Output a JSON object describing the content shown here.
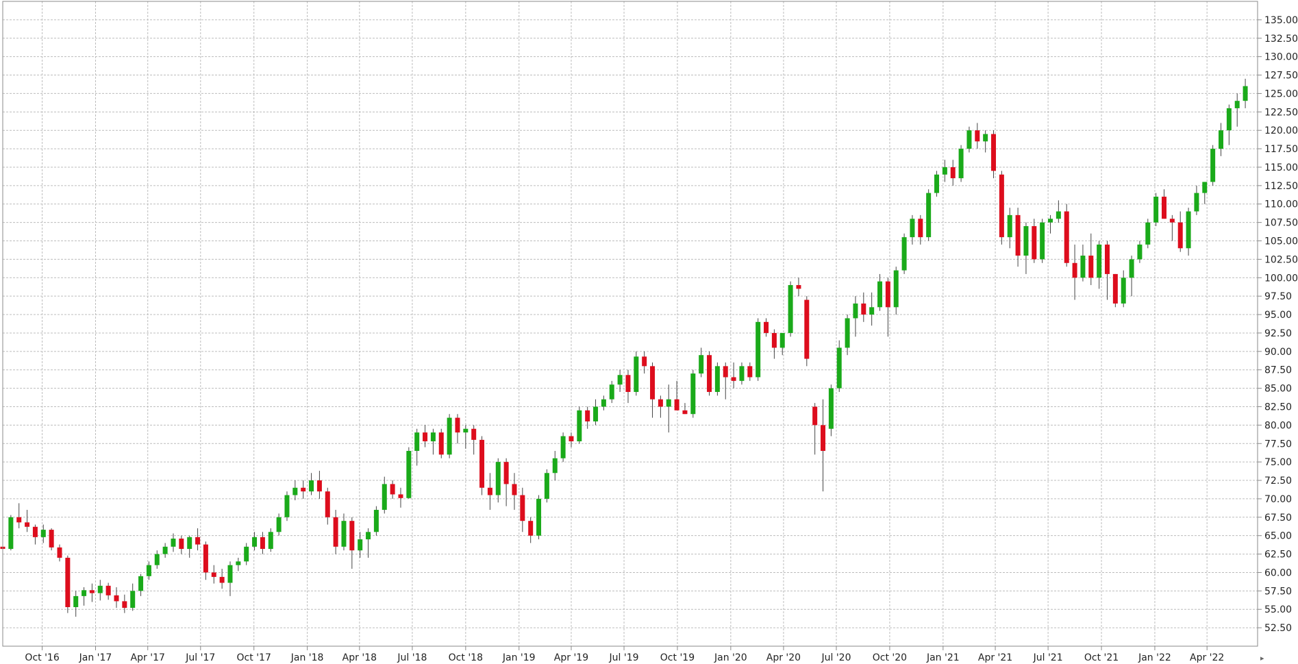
{
  "chart_data": {
    "type": "candlestick",
    "title": "",
    "xlabel": "",
    "ylabel": "",
    "ylim": [
      50,
      137.5
    ],
    "y_axis_position": "right",
    "grid": true,
    "legend": "none",
    "colors": {
      "up": "#1aaa1a",
      "down": "#dd0d1d",
      "grid": "#bcbcbc",
      "axis": "#888888",
      "wick": "#444444"
    },
    "y_ticks": [
      "52.50",
      "55.00",
      "57.50",
      "60.00",
      "62.50",
      "65.00",
      "67.50",
      "70.00",
      "72.50",
      "75.00",
      "77.50",
      "80.00",
      "82.50",
      "85.00",
      "87.50",
      "90.00",
      "92.50",
      "95.00",
      "97.50",
      "100.00",
      "102.50",
      "105.00",
      "107.50",
      "110.00",
      "112.50",
      "115.00",
      "117.50",
      "120.00",
      "122.50",
      "125.00",
      "127.50",
      "130.00",
      "132.50",
      "135.00"
    ],
    "x_ticks": [
      "Oct '16",
      "Jan '17",
      "Apr '17",
      "Jul '17",
      "Oct '17",
      "Jan '18",
      "Apr '18",
      "Jul '18",
      "Oct '18",
      "Jan '19",
      "Apr '19",
      "Jul '19",
      "Oct '19",
      "Jan '20",
      "Apr '20",
      "Jul '20",
      "Oct '20",
      "Jan '21",
      "Apr '21",
      "Jul '21",
      "Oct '21",
      "Jan '22",
      "Apr '22"
    ],
    "x_range": [
      "2016-07-25",
      "2022-06-13"
    ],
    "candles": [
      [
        "2016-07-25",
        63.5,
        64.5,
        62.8,
        63.2
      ],
      [
        "2016-08-08",
        63.2,
        67.8,
        63.0,
        67.5
      ],
      [
        "2016-08-22",
        67.5,
        69.4,
        66.0,
        66.8
      ],
      [
        "2016-09-05",
        66.8,
        68.5,
        65.5,
        66.2
      ],
      [
        "2016-09-19",
        66.2,
        66.5,
        63.8,
        64.8
      ],
      [
        "2016-10-03",
        64.8,
        66.5,
        64.0,
        65.8
      ],
      [
        "2016-10-17",
        65.8,
        66.0,
        63.0,
        63.4
      ],
      [
        "2016-10-31",
        63.4,
        63.8,
        61.5,
        62.0
      ],
      [
        "2016-11-14",
        62.0,
        62.3,
        54.5,
        55.3
      ],
      [
        "2016-11-28",
        55.3,
        57.5,
        54.0,
        56.8
      ],
      [
        "2016-12-12",
        56.8,
        58.0,
        55.5,
        57.6
      ],
      [
        "2016-12-26",
        57.6,
        58.5,
        56.0,
        57.2
      ],
      [
        "2017-01-09",
        57.2,
        59.0,
        56.2,
        58.2
      ],
      [
        "2017-01-23",
        58.2,
        58.6,
        56.3,
        56.9
      ],
      [
        "2017-02-06",
        56.9,
        58.0,
        55.2,
        56.1
      ],
      [
        "2017-02-20",
        56.1,
        57.0,
        54.5,
        55.2
      ],
      [
        "2017-03-06",
        55.2,
        58.5,
        54.8,
        57.5
      ],
      [
        "2017-03-20",
        57.5,
        59.8,
        56.8,
        59.5
      ],
      [
        "2017-04-03",
        59.5,
        61.5,
        59.0,
        61.0
      ],
      [
        "2017-04-17",
        61.0,
        63.0,
        60.5,
        62.5
      ],
      [
        "2017-05-01",
        62.5,
        64.0,
        62.0,
        63.5
      ],
      [
        "2017-05-15",
        63.5,
        65.3,
        62.8,
        64.6
      ],
      [
        "2017-05-29",
        64.6,
        65.0,
        62.5,
        63.2
      ],
      [
        "2017-06-12",
        63.2,
        65.0,
        62.0,
        64.8
      ],
      [
        "2017-06-26",
        64.8,
        66.0,
        63.0,
        63.8
      ],
      [
        "2017-07-10",
        63.8,
        64.2,
        59.0,
        60.0
      ],
      [
        "2017-07-24",
        60.0,
        61.0,
        58.5,
        59.4
      ],
      [
        "2017-08-07",
        59.4,
        60.5,
        57.8,
        58.6
      ],
      [
        "2017-08-21",
        58.6,
        61.5,
        56.8,
        61.0
      ],
      [
        "2017-09-04",
        61.0,
        62.0,
        60.2,
        61.5
      ],
      [
        "2017-09-18",
        61.5,
        64.0,
        61.0,
        63.5
      ],
      [
        "2017-10-02",
        63.5,
        65.5,
        63.0,
        64.8
      ],
      [
        "2017-10-16",
        64.8,
        65.5,
        62.5,
        63.2
      ],
      [
        "2017-10-30",
        63.2,
        66.0,
        62.8,
        65.5
      ],
      [
        "2017-11-13",
        65.5,
        68.0,
        65.0,
        67.5
      ],
      [
        "2017-11-27",
        67.5,
        71.0,
        67.0,
        70.5
      ],
      [
        "2017-12-11",
        70.5,
        72.5,
        69.8,
        71.5
      ],
      [
        "2017-12-25",
        71.5,
        72.5,
        70.0,
        71.0
      ],
      [
        "2018-01-08",
        71.0,
        73.5,
        70.5,
        72.5
      ],
      [
        "2018-01-22",
        72.5,
        73.8,
        70.0,
        71.0
      ],
      [
        "2018-02-05",
        71.0,
        71.5,
        66.5,
        67.5
      ],
      [
        "2018-02-19",
        67.5,
        68.5,
        62.5,
        63.5
      ],
      [
        "2018-03-05",
        63.5,
        68.0,
        63.0,
        67.0
      ],
      [
        "2018-03-19",
        67.0,
        67.5,
        60.5,
        63.0
      ],
      [
        "2018-04-02",
        63.0,
        65.5,
        62.0,
        64.5
      ],
      [
        "2018-04-16",
        64.5,
        66.0,
        62.0,
        65.5
      ],
      [
        "2018-04-30",
        65.5,
        69.0,
        65.0,
        68.5
      ],
      [
        "2018-05-14",
        68.5,
        73.0,
        68.0,
        72.0
      ],
      [
        "2018-05-28",
        72.0,
        72.5,
        70.0,
        70.6
      ],
      [
        "2018-06-11",
        70.6,
        71.5,
        68.8,
        70.1
      ],
      [
        "2018-06-25",
        70.1,
        77.0,
        70.0,
        76.5
      ],
      [
        "2018-07-09",
        76.5,
        79.5,
        74.5,
        79.0
      ],
      [
        "2018-07-23",
        79.0,
        80.0,
        77.0,
        77.8
      ],
      [
        "2018-08-06",
        77.8,
        79.5,
        76.0,
        79.0
      ],
      [
        "2018-08-20",
        79.0,
        79.5,
        75.5,
        76.0
      ],
      [
        "2018-09-03",
        76.0,
        81.5,
        75.5,
        81.0
      ],
      [
        "2018-09-17",
        81.0,
        81.5,
        77.5,
        79.0
      ],
      [
        "2018-10-01",
        79.0,
        80.0,
        76.8,
        79.5
      ],
      [
        "2018-10-15",
        79.5,
        80.0,
        76.0,
        78.0
      ],
      [
        "2018-10-29",
        78.0,
        78.5,
        70.5,
        71.5
      ],
      [
        "2018-11-12",
        71.5,
        73.5,
        68.5,
        70.5
      ],
      [
        "2018-11-26",
        70.5,
        75.5,
        69.5,
        75.0
      ],
      [
        "2018-12-10",
        75.0,
        75.5,
        69.0,
        72.0
      ],
      [
        "2018-12-24",
        72.0,
        73.5,
        68.5,
        70.5
      ],
      [
        "2019-01-07",
        70.5,
        71.5,
        65.5,
        67.0
      ],
      [
        "2019-01-21",
        67.0,
        67.5,
        64.0,
        65.0
      ],
      [
        "2019-02-04",
        65.0,
        70.5,
        64.5,
        70.0
      ],
      [
        "2019-02-18",
        70.0,
        74.0,
        69.5,
        73.5
      ],
      [
        "2019-03-04",
        73.5,
        76.5,
        72.5,
        75.5
      ],
      [
        "2019-03-18",
        75.5,
        79.0,
        75.0,
        78.5
      ],
      [
        "2019-04-01",
        78.5,
        79.0,
        77.0,
        77.8
      ],
      [
        "2019-04-15",
        77.8,
        82.5,
        77.5,
        82.0
      ],
      [
        "2019-04-29",
        82.0,
        82.5,
        79.5,
        80.5
      ],
      [
        "2019-05-13",
        80.5,
        83.5,
        80.0,
        82.5
      ],
      [
        "2019-05-27",
        82.5,
        84.0,
        82.0,
        83.5
      ],
      [
        "2019-06-10",
        83.5,
        86.0,
        83.0,
        85.5
      ],
      [
        "2019-06-24",
        85.5,
        87.5,
        84.5,
        86.8
      ],
      [
        "2019-07-08",
        86.8,
        87.5,
        83.0,
        84.5
      ],
      [
        "2019-07-22",
        84.5,
        90.0,
        84.0,
        89.3
      ],
      [
        "2019-08-05",
        89.3,
        90.0,
        87.0,
        88.0
      ],
      [
        "2019-08-19",
        88.0,
        88.5,
        81.0,
        83.5
      ],
      [
        "2019-09-02",
        83.5,
        84.0,
        81.0,
        82.5
      ],
      [
        "2019-09-16",
        82.5,
        85.5,
        79.0,
        83.5
      ],
      [
        "2019-09-30",
        83.5,
        86.0,
        82.5,
        82.0
      ],
      [
        "2019-10-14",
        82.0,
        83.0,
        81.5,
        81.5
      ],
      [
        "2019-10-28",
        81.5,
        87.5,
        81.0,
        87.0
      ],
      [
        "2019-11-11",
        87.0,
        90.5,
        86.5,
        89.5
      ],
      [
        "2019-11-25",
        89.5,
        90.0,
        84.0,
        84.5
      ],
      [
        "2019-12-09",
        84.5,
        88.5,
        84.0,
        88.0
      ],
      [
        "2019-12-23",
        88.0,
        88.5,
        83.5,
        86.5
      ],
      [
        "2020-01-06",
        86.5,
        88.5,
        85.0,
        86.0
      ],
      [
        "2020-01-20",
        86.0,
        88.5,
        85.5,
        88.0
      ],
      [
        "2020-02-03",
        88.0,
        88.5,
        86.0,
        86.5
      ],
      [
        "2020-02-17",
        86.5,
        94.5,
        86.0,
        94.0
      ],
      [
        "2020-03-02",
        94.0,
        94.5,
        92.0,
        92.5
      ],
      [
        "2020-03-16",
        92.5,
        93.0,
        89.0,
        90.5
      ],
      [
        "2020-03-30",
        90.5,
        92.5,
        89.5,
        92.5
      ],
      [
        "2020-04-13",
        92.5,
        99.5,
        92.0,
        99.0
      ],
      [
        "2020-04-27",
        99.0,
        100.0,
        97.5,
        98.5
      ],
      [
        "2020-05-11",
        97.0,
        97.5,
        88.0,
        89.0
      ],
      [
        "2020-05-25",
        82.5,
        83.0,
        76.0,
        80.0
      ],
      [
        "2020-06-08",
        80.0,
        83.5,
        71.0,
        76.5
      ],
      [
        "2020-06-22",
        79.5,
        85.5,
        78.5,
        85.0
      ],
      [
        "2020-07-06",
        85.0,
        91.5,
        84.5,
        90.5
      ],
      [
        "2020-07-20",
        90.5,
        95.0,
        89.5,
        94.5
      ],
      [
        "2020-08-03",
        94.5,
        97.5,
        92.0,
        96.5
      ],
      [
        "2020-08-17",
        96.5,
        98.0,
        94.0,
        95.0
      ],
      [
        "2020-08-31",
        95.0,
        98.0,
        93.5,
        96.0
      ],
      [
        "2020-09-14",
        96.0,
        100.5,
        95.5,
        99.5
      ],
      [
        "2020-09-28",
        99.5,
        100.0,
        92.0,
        96.0
      ],
      [
        "2020-10-12",
        96.0,
        101.5,
        95.0,
        101.0
      ],
      [
        "2020-10-26",
        101.0,
        106.0,
        100.5,
        105.5
      ],
      [
        "2020-11-09",
        105.5,
        108.5,
        104.5,
        108.0
      ],
      [
        "2020-11-23",
        108.0,
        108.5,
        104.5,
        105.5
      ],
      [
        "2020-12-07",
        105.5,
        112.0,
        105.0,
        111.5
      ],
      [
        "2020-12-21",
        111.5,
        114.5,
        111.0,
        114.0
      ],
      [
        "2021-01-04",
        114.0,
        116.0,
        113.0,
        115.0
      ],
      [
        "2021-01-18",
        115.0,
        116.0,
        112.5,
        113.5
      ],
      [
        "2021-02-01",
        113.5,
        118.0,
        113.0,
        117.5
      ],
      [
        "2021-02-15",
        117.5,
        120.5,
        117.0,
        120.0
      ],
      [
        "2021-03-01",
        120.0,
        121.0,
        117.5,
        118.5
      ],
      [
        "2021-03-15",
        118.5,
        120.0,
        117.0,
        119.5
      ],
      [
        "2021-03-29",
        119.5,
        120.0,
        113.5,
        114.5
      ],
      [
        "2021-04-12",
        114.0,
        114.5,
        104.5,
        105.5
      ],
      [
        "2021-04-26",
        105.5,
        109.5,
        104.0,
        108.5
      ],
      [
        "2021-05-10",
        108.5,
        109.5,
        101.5,
        103.0
      ],
      [
        "2021-05-24",
        103.0,
        107.5,
        100.5,
        107.0
      ],
      [
        "2021-06-07",
        107.0,
        108.0,
        102.0,
        102.5
      ],
      [
        "2021-06-21",
        102.5,
        108.0,
        102.0,
        107.5
      ],
      [
        "2021-07-05",
        107.5,
        108.5,
        106.0,
        108.0
      ],
      [
        "2021-07-19",
        108.0,
        110.5,
        107.5,
        109.0
      ],
      [
        "2021-08-02",
        109.0,
        110.0,
        101.5,
        102.0
      ],
      [
        "2021-08-16",
        102.0,
        104.5,
        97.0,
        100.0
      ],
      [
        "2021-08-30",
        100.0,
        104.5,
        99.5,
        103.0
      ],
      [
        "2021-09-13",
        103.0,
        106.0,
        99.0,
        100.0
      ],
      [
        "2021-09-27",
        100.0,
        105.0,
        98.5,
        104.5
      ],
      [
        "2021-10-11",
        104.5,
        105.0,
        97.0,
        100.5
      ],
      [
        "2021-10-25",
        100.5,
        100.5,
        96.0,
        96.5
      ],
      [
        "2021-11-08",
        96.5,
        101.0,
        96.0,
        100.0
      ],
      [
        "2021-11-22",
        100.0,
        103.0,
        97.5,
        102.5
      ],
      [
        "2021-12-06",
        102.5,
        105.0,
        102.0,
        104.5
      ],
      [
        "2021-12-20",
        104.5,
        108.0,
        104.0,
        107.5
      ],
      [
        "2022-01-03",
        107.5,
        111.5,
        107.0,
        111.0
      ],
      [
        "2022-01-17",
        111.0,
        112.0,
        108.0,
        108.0
      ],
      [
        "2022-01-31",
        108.0,
        108.5,
        105.0,
        107.5
      ],
      [
        "2022-02-14",
        107.5,
        109.0,
        103.5,
        104.0
      ],
      [
        "2022-02-28",
        104.0,
        109.5,
        103.0,
        109.0
      ],
      [
        "2022-03-14",
        109.0,
        112.5,
        108.5,
        111.5
      ],
      [
        "2022-03-28",
        111.5,
        113.0,
        110.0,
        113.0
      ],
      [
        "2022-04-11",
        113.0,
        118.0,
        112.5,
        117.5
      ],
      [
        "2022-04-25",
        117.5,
        121.0,
        116.5,
        120.0
      ],
      [
        "2022-05-09",
        120.0,
        123.5,
        118.0,
        123.0
      ],
      [
        "2022-05-23",
        123.0,
        125.0,
        120.5,
        124.0
      ],
      [
        "2022-06-06",
        124.0,
        127.0,
        123.0,
        126.0
      ]
    ]
  }
}
